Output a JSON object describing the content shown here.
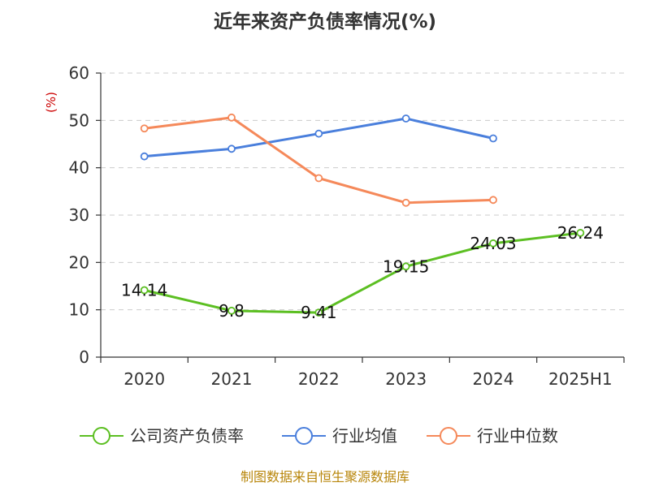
{
  "chart_data": {
    "type": "line",
    "title": "近年来资产负债率情况(%)",
    "ylabel": "(%)",
    "categories": [
      "2020",
      "2021",
      "2022",
      "2023",
      "2024",
      "2025H1"
    ],
    "ylim": [
      0,
      60
    ],
    "yticks": [
      0,
      10,
      20,
      30,
      40,
      50,
      60
    ],
    "grid": true,
    "legend_position": "bottom",
    "series": [
      {
        "name": "公司资产负债率",
        "color": "#5cbf22",
        "values": [
          14.14,
          9.8,
          9.41,
          19.15,
          24.03,
          26.24
        ],
        "labels": [
          "14.14",
          "9.8",
          "9.41",
          "19.15",
          "24.03",
          "26.24"
        ],
        "show_labels": true
      },
      {
        "name": "行业均值",
        "color": "#4a7fdc",
        "values": [
          42.4,
          44.0,
          47.2,
          50.4,
          46.2,
          null
        ],
        "show_labels": false
      },
      {
        "name": "行业中位数",
        "color": "#f5895a",
        "values": [
          48.3,
          50.6,
          37.8,
          32.6,
          33.2,
          null
        ],
        "show_labels": false
      }
    ],
    "source": "制图数据来自恒生聚源数据库"
  }
}
